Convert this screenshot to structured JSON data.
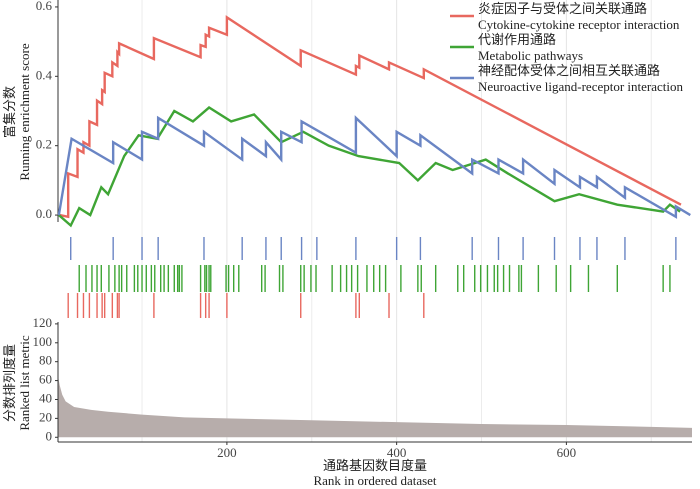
{
  "chart_data": [
    {
      "type": "line",
      "ylabel": [
        "富集分数",
        "Running enrichment score"
      ],
      "xlim": [
        1,
        748
      ],
      "ylim": [
        -0.02,
        0.62
      ],
      "yticks": [
        {
          "value": 0,
          "label": "0.0"
        },
        0.2,
        0.4,
        0.6
      ],
      "x_minor_grid": [
        100,
        300,
        500,
        700
      ],
      "legend": "top-right",
      "series": [
        {
          "name": "炎症因子与受体之间关联通路",
          "name_en": "Cytokine-cytokine receptor interaction",
          "color": "#e8685f",
          "x": [
            3,
            13,
            13,
            24,
            24,
            31,
            31,
            38,
            38,
            47,
            47,
            53,
            53,
            56,
            56,
            65,
            65,
            71,
            71,
            73,
            73,
            114,
            114,
            169,
            169,
            175,
            175,
            179,
            179,
            200,
            200,
            287,
            287,
            352,
            352,
            356,
            356,
            391,
            391,
            432,
            432,
            735
          ],
          "values": [
            0.0,
            -0.005,
            0.12,
            0.11,
            0.19,
            0.18,
            0.21,
            0.2,
            0.27,
            0.26,
            0.33,
            0.32,
            0.36,
            0.355,
            0.41,
            0.4,
            0.44,
            0.43,
            0.47,
            0.465,
            0.495,
            0.45,
            0.51,
            0.455,
            0.49,
            0.485,
            0.52,
            0.515,
            0.54,
            0.52,
            0.57,
            0.43,
            0.475,
            0.405,
            0.43,
            0.425,
            0.46,
            0.42,
            0.44,
            0.395,
            0.42,
            0.03
          ],
          "hits": [
            13,
            24,
            31,
            38,
            47,
            53,
            56,
            65,
            71,
            73,
            114,
            169,
            175,
            179,
            200,
            287,
            352,
            356,
            391,
            432
          ]
        },
        {
          "name": "代谢作用通路",
          "name_en": "Metabolic pathways",
          "color": "#3fa535",
          "x": [
            2,
            16,
            26,
            39,
            52,
            60,
            79,
            96,
            118,
            138,
            160,
            179,
            205,
            232,
            264,
            290,
            320,
            355,
            403,
            425,
            446,
            466,
            505,
            531,
            586,
            615,
            660,
            714,
            722,
            734
          ],
          "values": [
            0.0,
            -0.03,
            0.02,
            0.0,
            0.08,
            0.06,
            0.17,
            0.23,
            0.22,
            0.3,
            0.27,
            0.31,
            0.27,
            0.29,
            0.21,
            0.24,
            0.2,
            0.17,
            0.15,
            0.1,
            0.15,
            0.13,
            0.16,
            0.12,
            0.04,
            0.06,
            0.03,
            0.01,
            0.03,
            0.01
          ],
          "hits": [
            26,
            34,
            41,
            47,
            52,
            61,
            68,
            73,
            76,
            82,
            91,
            95,
            100,
            105,
            111,
            115,
            122,
            126,
            131,
            138,
            142,
            144,
            147,
            169,
            174,
            176,
            179,
            181,
            199,
            202,
            208,
            214,
            241,
            245,
            262,
            266,
            287,
            291,
            299,
            305,
            324,
            334,
            341,
            347,
            354,
            365,
            373,
            380,
            387,
            405,
            425,
            429,
            446,
            472,
            479,
            492,
            499,
            507,
            515,
            519,
            526,
            533,
            544,
            547,
            567,
            588,
            605,
            626,
            660,
            714,
            722
          ]
        },
        {
          "name": "神经配体受体之间相互关联通路",
          "name_en": "Neuroactive ligand-receptor interaction",
          "color": "#6a85c4",
          "x": [
            2,
            17,
            66,
            66,
            100,
            100,
            119,
            119,
            173,
            173,
            218,
            218,
            246,
            246,
            264,
            264,
            288,
            288,
            352,
            352,
            400,
            400,
            428,
            428,
            489,
            489,
            520,
            520,
            549,
            549,
            586,
            586,
            616,
            616,
            636,
            636,
            669,
            669,
            729,
            729,
            746
          ],
          "values": [
            0.0,
            0.22,
            0.15,
            0.21,
            0.16,
            0.24,
            0.22,
            0.28,
            0.2,
            0.24,
            0.16,
            0.22,
            0.17,
            0.21,
            0.16,
            0.24,
            0.21,
            0.27,
            0.18,
            0.28,
            0.17,
            0.24,
            0.2,
            0.23,
            0.12,
            0.16,
            0.12,
            0.16,
            0.12,
            0.16,
            0.09,
            0.13,
            0.08,
            0.11,
            0.08,
            0.11,
            0.05,
            0.08,
            -0.005,
            0.025,
            0.0
          ],
          "hits": [
            16,
            66,
            100,
            119,
            173,
            218,
            246,
            264,
            288,
            306,
            352,
            400,
            428,
            489,
            520,
            549,
            586,
            616,
            636,
            669,
            729
          ]
        }
      ]
    },
    {
      "type": "area",
      "ylabel": [
        "分数排列度量",
        "Ranked list metric"
      ],
      "xlabel": [
        "通路基因数目度量",
        "Rank in ordered dataset"
      ],
      "xlim": [
        1,
        748
      ],
      "ylim": [
        -5,
        122
      ],
      "xticks": [
        200,
        400,
        600
      ],
      "yticks": [
        0,
        20,
        40,
        60,
        80,
        100,
        120
      ],
      "color": "#b7adab",
      "x": [
        1,
        3,
        6,
        10,
        20,
        40,
        60,
        100,
        150,
        200,
        300,
        400,
        500,
        600,
        700,
        748
      ],
      "values": [
        65,
        55,
        45,
        38,
        32,
        29,
        27,
        24,
        21,
        20,
        18,
        16,
        14,
        13,
        11,
        10
      ]
    }
  ]
}
